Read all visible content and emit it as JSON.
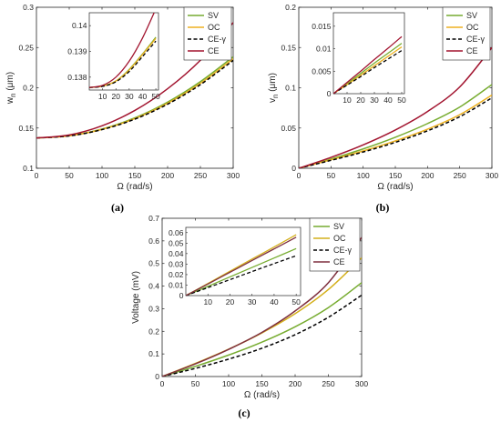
{
  "chart_data": [
    {
      "type": "line",
      "caption": "(a)",
      "xlabel": "Ω (rad/s)",
      "ylabel": "w_n (μm)",
      "ylabel_base": "w",
      "ylabel_sub": "n",
      "ylabel_unit": " (μm)",
      "xlim": [
        0,
        300
      ],
      "ylim": [
        0.1,
        0.3
      ],
      "xticks": [
        0,
        50,
        100,
        150,
        200,
        250,
        300
      ],
      "yticks": [
        0.1,
        0.15,
        0.2,
        0.25,
        0.3
      ],
      "ytick_labels": [
        "0.1",
        "0.15",
        "0.2",
        "0.25",
        "0.3"
      ],
      "legend": [
        "SV",
        "OC",
        "CE-γ",
        "CE"
      ],
      "series": [
        {
          "name": "SV",
          "color": "#77AC30",
          "dash": "solid",
          "x": [
            0,
            50,
            100,
            150,
            200,
            250,
            300
          ],
          "y": [
            0.1376,
            0.1404,
            0.1487,
            0.1626,
            0.1822,
            0.2076,
            0.2385
          ]
        },
        {
          "name": "OC",
          "color": "#EDB120",
          "dash": "solid",
          "x": [
            0,
            50,
            100,
            150,
            200,
            250,
            300
          ],
          "y": [
            0.1376,
            0.1403,
            0.1483,
            0.1617,
            0.1807,
            0.2055,
            0.236
          ]
        },
        {
          "name": "CE-γ",
          "color": "#000000",
          "dash": "dashed",
          "x": [
            0,
            50,
            100,
            150,
            200,
            250,
            300
          ],
          "y": [
            0.1376,
            0.1402,
            0.148,
            0.161,
            0.1796,
            0.2039,
            0.234
          ]
        },
        {
          "name": "CE",
          "color": "#A2142F",
          "dash": "solid",
          "x": [
            0,
            50,
            100,
            150,
            200,
            250,
            300
          ],
          "y": [
            0.1376,
            0.1414,
            0.1528,
            0.1718,
            0.1988,
            0.2342,
            0.281
          ]
        }
      ],
      "inset": {
        "xlim": [
          0,
          52
        ],
        "ylim": [
          0.1375,
          0.1405
        ],
        "xticks": [
          10,
          20,
          30,
          40,
          50
        ],
        "yticks": [
          0.138,
          0.139,
          0.14
        ],
        "ytick_labels": [
          "0.138",
          "0.139",
          "0.14"
        ],
        "series": [
          {
            "name": "SV",
            "x": [
              0,
              10,
              20,
              30,
              40,
              50
            ],
            "y": [
              0.1376,
              0.13765,
              0.13785,
              0.1383,
              0.1389,
              0.13955
            ]
          },
          {
            "name": "OC",
            "x": [
              0,
              10,
              20,
              30,
              40,
              50
            ],
            "y": [
              0.1376,
              0.13765,
              0.13785,
              0.13828,
              0.13888,
              0.1395
            ]
          },
          {
            "name": "CE-γ",
            "x": [
              0,
              10,
              20,
              30,
              40,
              50
            ],
            "y": [
              0.1376,
              0.13764,
              0.13782,
              0.13822,
              0.1388,
              0.1394
            ]
          },
          {
            "name": "CE",
            "x": [
              0,
              10,
              20,
              30,
              40,
              50
            ],
            "y": [
              0.1376,
              0.13768,
              0.138,
              0.13862,
              0.13952,
              0.14065
            ]
          }
        ]
      }
    },
    {
      "type": "line",
      "caption": "(b)",
      "xlabel": "Ω (rad/s)",
      "ylabel": "v_n (μm)",
      "ylabel_base": "v",
      "ylabel_sub": "n",
      "ylabel_unit": " (μm)",
      "xlim": [
        0,
        300
      ],
      "ylim": [
        0,
        0.2
      ],
      "xticks": [
        0,
        50,
        100,
        150,
        200,
        250,
        300
      ],
      "yticks": [
        0,
        0.05,
        0.1,
        0.15,
        0.2
      ],
      "ytick_labels": [
        "0",
        "0.05",
        "0.1",
        "0.15",
        "0.2"
      ],
      "legend": [
        "SV",
        "OC",
        "CE-γ",
        "CE"
      ],
      "series": [
        {
          "name": "SV",
          "color": "#77AC30",
          "dash": "solid",
          "x": [
            0,
            50,
            100,
            150,
            200,
            250,
            300
          ],
          "y": [
            0,
            0.0115,
            0.024,
            0.0385,
            0.0555,
            0.076,
            0.104
          ]
        },
        {
          "name": "OC",
          "color": "#EDB120",
          "dash": "solid",
          "x": [
            0,
            50,
            100,
            150,
            200,
            250,
            300
          ],
          "y": [
            0,
            0.0105,
            0.0215,
            0.034,
            0.0485,
            0.0665,
            0.091
          ]
        },
        {
          "name": "CE-γ",
          "color": "#000000",
          "dash": "dashed",
          "x": [
            0,
            50,
            100,
            150,
            200,
            250,
            300
          ],
          "y": [
            0,
            0.0098,
            0.0202,
            0.0322,
            0.0465,
            0.064,
            0.0875
          ]
        },
        {
          "name": "CE",
          "color": "#A2142F",
          "dash": "solid",
          "x": [
            0,
            50,
            100,
            150,
            200,
            250,
            300
          ],
          "y": [
            0,
            0.0135,
            0.029,
            0.0475,
            0.0705,
            0.101,
            0.15
          ]
        }
      ],
      "inset": {
        "xlim": [
          0,
          52
        ],
        "ylim": [
          0,
          0.018
        ],
        "xticks": [
          10,
          20,
          30,
          40,
          50
        ],
        "yticks": [
          0,
          0.005,
          0.01,
          0.015
        ],
        "ytick_labels": [
          "0",
          "0.005",
          "0.01",
          "0.015"
        ],
        "series": [
          {
            "name": "SV",
            "x": [
              0,
              10,
              20,
              30,
              40,
              50
            ],
            "y": [
              0,
              0.0022,
              0.0045,
              0.0068,
              0.009,
              0.0112
            ]
          },
          {
            "name": "OC",
            "x": [
              0,
              10,
              20,
              30,
              40,
              50
            ],
            "y": [
              0,
              0.002,
              0.0041,
              0.0062,
              0.0083,
              0.0104
            ]
          },
          {
            "name": "CE-γ",
            "x": [
              0,
              10,
              20,
              30,
              40,
              50
            ],
            "y": [
              0,
              0.0019,
              0.0038,
              0.0058,
              0.0077,
              0.0096
            ]
          },
          {
            "name": "CE",
            "x": [
              0,
              10,
              20,
              30,
              40,
              50
            ],
            "y": [
              0,
              0.0025,
              0.005,
              0.0076,
              0.0101,
              0.0127
            ]
          }
        ]
      }
    },
    {
      "type": "line",
      "caption": "(c)",
      "xlabel": "Ω (rad/s)",
      "ylabel": "Voltage (mV)",
      "xlim": [
        0,
        300
      ],
      "ylim": [
        0,
        0.7
      ],
      "xticks": [
        0,
        50,
        100,
        150,
        200,
        250,
        300
      ],
      "yticks": [
        0,
        0.1,
        0.2,
        0.3,
        0.4,
        0.5,
        0.6,
        0.7
      ],
      "ytick_labels": [
        "0",
        "0.1",
        "0.2",
        "0.3",
        "0.4",
        "0.5",
        "0.6",
        "0.7"
      ],
      "legend": [
        "SV",
        "OC",
        "CE-γ",
        "CE"
      ],
      "series": [
        {
          "name": "SV",
          "color": "#77AC30",
          "dash": "solid",
          "x": [
            0,
            50,
            100,
            150,
            200,
            250,
            300
          ],
          "y": [
            0,
            0.045,
            0.095,
            0.152,
            0.22,
            0.305,
            0.415
          ]
        },
        {
          "name": "OC",
          "color": "#D4B01C",
          "dash": "solid",
          "x": [
            0,
            50,
            100,
            150,
            200,
            250,
            300
          ],
          "y": [
            0,
            0.058,
            0.121,
            0.193,
            0.278,
            0.385,
            0.525
          ]
        },
        {
          "name": "CE-γ",
          "color": "#000000",
          "dash": "dashed",
          "x": [
            0,
            50,
            100,
            150,
            200,
            250,
            300
          ],
          "y": [
            0,
            0.036,
            0.077,
            0.125,
            0.185,
            0.262,
            0.36
          ]
        },
        {
          "name": "CE",
          "color": "#7E2F3E",
          "dash": "solid",
          "x": [
            0,
            50,
            100,
            150,
            200,
            250,
            300
          ],
          "y": [
            0,
            0.056,
            0.12,
            0.195,
            0.29,
            0.415,
            0.615
          ]
        }
      ],
      "inset": {
        "xlim": [
          0,
          52
        ],
        "ylim": [
          0,
          0.065
        ],
        "xticks": [
          10,
          20,
          30,
          40,
          50
        ],
        "yticks": [
          0,
          0.01,
          0.02,
          0.03,
          0.04,
          0.05,
          0.06
        ],
        "ytick_labels": [
          "0",
          "0.01",
          "0.02",
          "0.03",
          "0.04",
          "0.05",
          "0.06"
        ],
        "series": [
          {
            "name": "SV",
            "x": [
              0,
              10,
              20,
              30,
              40,
              50
            ],
            "y": [
              0,
              0.0088,
              0.0178,
              0.0268,
              0.0358,
              0.0448
            ]
          },
          {
            "name": "OC",
            "x": [
              0,
              10,
              20,
              30,
              40,
              50
            ],
            "y": [
              0,
              0.0115,
              0.0232,
              0.0348,
              0.0463,
              0.058
            ]
          },
          {
            "name": "CE-γ",
            "x": [
              0,
              10,
              20,
              30,
              40,
              50
            ],
            "y": [
              0,
              0.0076,
              0.0152,
              0.0229,
              0.0305,
              0.038
            ]
          },
          {
            "name": "CE",
            "x": [
              0,
              10,
              20,
              30,
              40,
              50
            ],
            "y": [
              0,
              0.011,
              0.0222,
              0.0334,
              0.0445,
              0.0556
            ]
          }
        ]
      }
    }
  ]
}
